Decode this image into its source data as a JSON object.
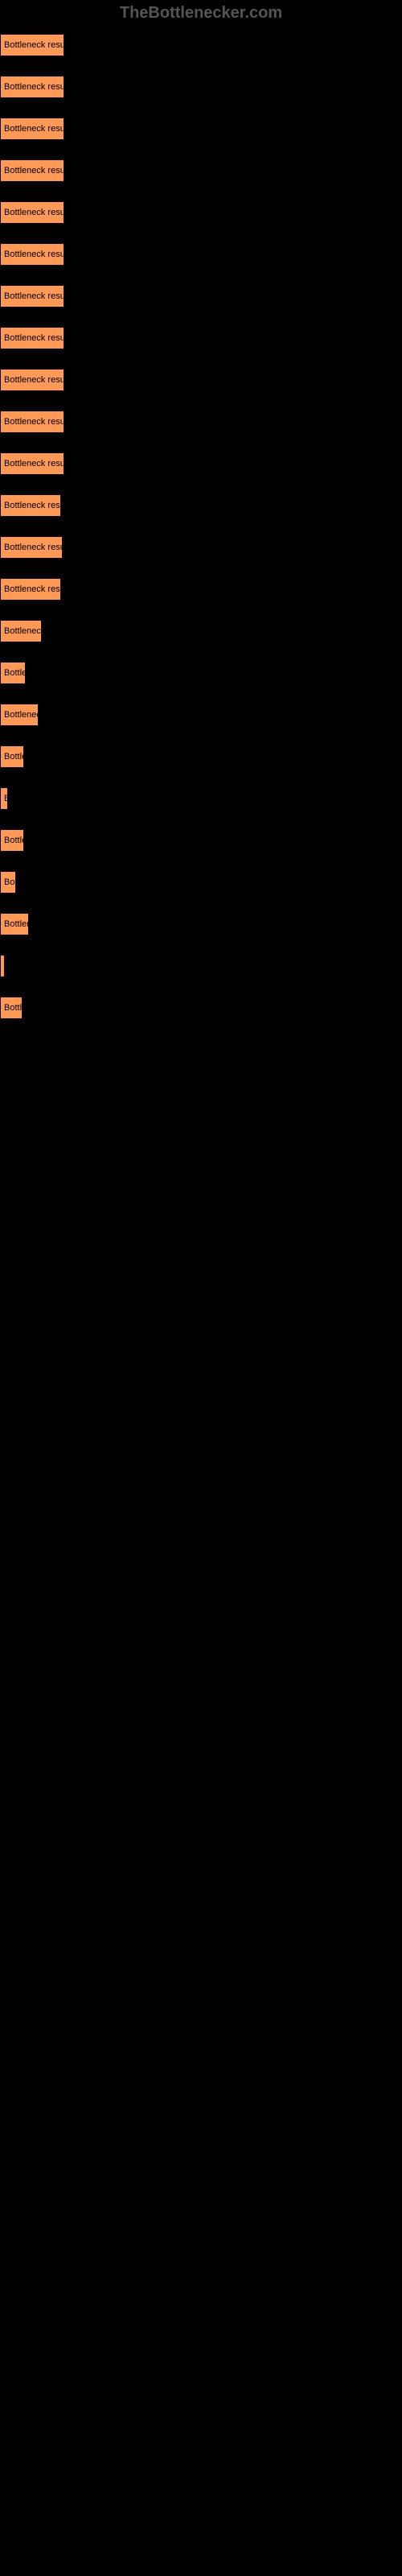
{
  "watermark": "TheBottlenecker.com",
  "chart": {
    "type": "bar",
    "bar_color": "#ff9955",
    "bar_border_color": "#000000",
    "background_color": "#000000",
    "text_color": "#000000",
    "font_size": 11,
    "max_width": 80,
    "bars": [
      {
        "label": "Bottleneck result",
        "width": 80
      },
      {
        "label": "Bottleneck result",
        "width": 80
      },
      {
        "label": "Bottleneck result",
        "width": 80
      },
      {
        "label": "Bottleneck result",
        "width": 80
      },
      {
        "label": "Bottleneck result",
        "width": 80
      },
      {
        "label": "Bottleneck result",
        "width": 80
      },
      {
        "label": "Bottleneck result",
        "width": 80
      },
      {
        "label": "Bottleneck result",
        "width": 80
      },
      {
        "label": "Bottleneck result",
        "width": 80
      },
      {
        "label": "Bottleneck result",
        "width": 80
      },
      {
        "label": "Bottleneck result",
        "width": 80
      },
      {
        "label": "Bottleneck resu",
        "width": 76
      },
      {
        "label": "Bottleneck resul",
        "width": 78
      },
      {
        "label": "Bottleneck resu",
        "width": 76
      },
      {
        "label": "Bottleneck",
        "width": 52
      },
      {
        "label": "Bottler",
        "width": 32
      },
      {
        "label": "Bottleneck",
        "width": 48
      },
      {
        "label": "Bottle",
        "width": 30
      },
      {
        "label": "B",
        "width": 10
      },
      {
        "label": "Bottle",
        "width": 30
      },
      {
        "label": "Bot",
        "width": 20
      },
      {
        "label": "Bottlen",
        "width": 36
      },
      {
        "label": "",
        "width": 4
      },
      {
        "label": "Bottl",
        "width": 28
      }
    ]
  }
}
